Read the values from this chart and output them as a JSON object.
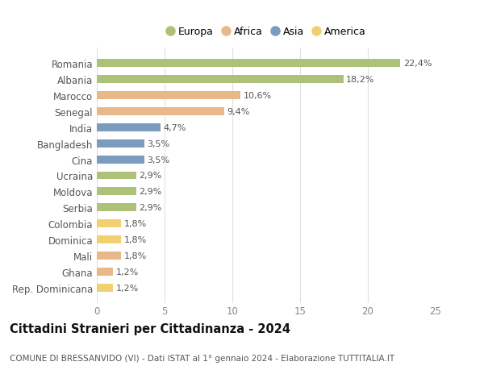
{
  "countries": [
    "Romania",
    "Albania",
    "Marocco",
    "Senegal",
    "India",
    "Bangladesh",
    "Cina",
    "Ucraina",
    "Moldova",
    "Serbia",
    "Colombia",
    "Dominica",
    "Mali",
    "Ghana",
    "Rep. Dominicana"
  ],
  "values": [
    22.4,
    18.2,
    10.6,
    9.4,
    4.7,
    3.5,
    3.5,
    2.9,
    2.9,
    2.9,
    1.8,
    1.8,
    1.8,
    1.2,
    1.2
  ],
  "labels": [
    "22,4%",
    "18,2%",
    "10,6%",
    "9,4%",
    "4,7%",
    "3,5%",
    "3,5%",
    "2,9%",
    "2,9%",
    "2,9%",
    "1,8%",
    "1,8%",
    "1,8%",
    "1,2%",
    "1,2%"
  ],
  "continents": [
    "Europa",
    "Europa",
    "Africa",
    "Africa",
    "Asia",
    "Asia",
    "Asia",
    "Europa",
    "Europa",
    "Europa",
    "America",
    "America",
    "Africa",
    "Africa",
    "America"
  ],
  "colors": {
    "Europa": "#adc178",
    "Africa": "#e8b88a",
    "Asia": "#7a9cbf",
    "America": "#f0d070"
  },
  "xlim": [
    0,
    25
  ],
  "xticks": [
    0,
    5,
    10,
    15,
    20,
    25
  ],
  "title": "Cittadini Stranieri per Cittadinanza - 2024",
  "subtitle": "COMUNE DI BRESSANVIDO (VI) - Dati ISTAT al 1° gennaio 2024 - Elaborazione TUTTITALIA.IT",
  "bg_color": "#ffffff",
  "grid_color": "#e0e0e0",
  "bar_height": 0.5,
  "label_fontsize": 8,
  "tick_fontsize": 8.5,
  "title_fontsize": 10.5,
  "subtitle_fontsize": 7.5,
  "legend_order": [
    "Europa",
    "Africa",
    "Asia",
    "America"
  ]
}
